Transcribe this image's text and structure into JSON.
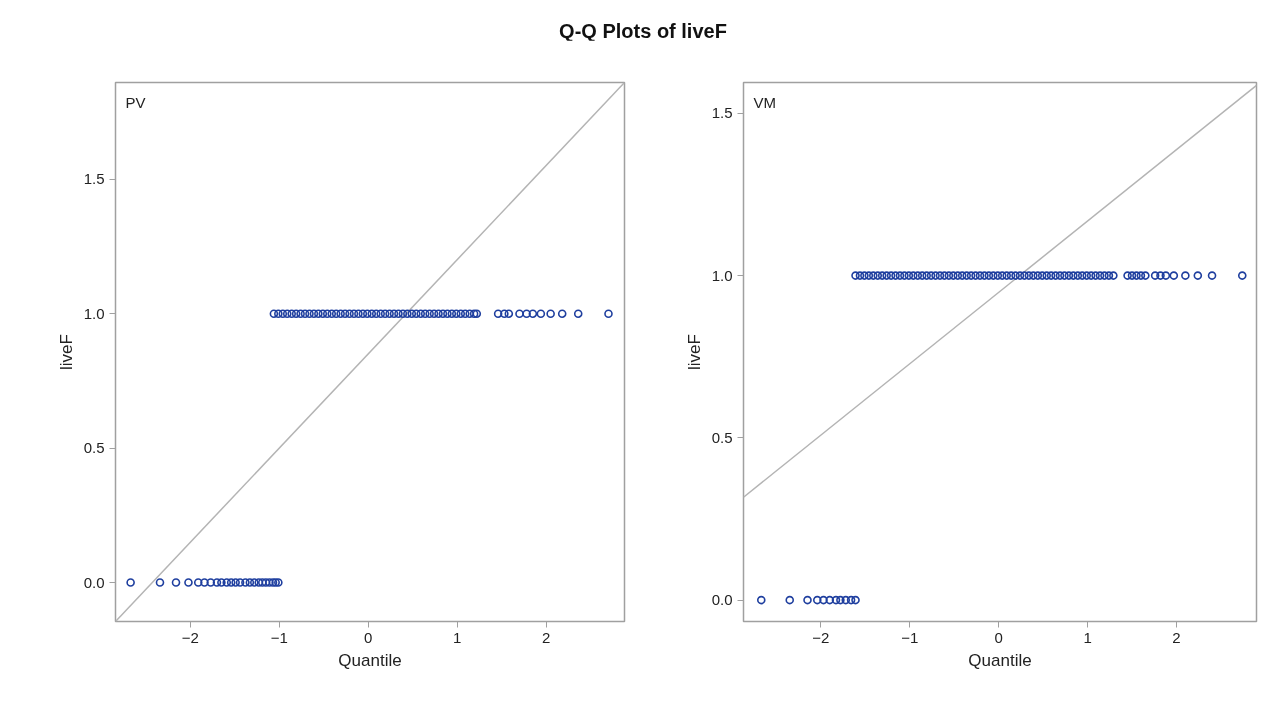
{
  "chart_data": [
    {
      "type": "scatter",
      "title": "Q-Q Plots of liveF",
      "xlabel": "Quantile",
      "ylabel": "liveF",
      "annotations": [
        "PV"
      ],
      "marker": "circle",
      "grid": false,
      "xlim": [
        -2.84,
        2.88
      ],
      "ylim": [
        -0.145,
        1.86
      ],
      "xticks": [
        -2,
        -1,
        0,
        1,
        2
      ],
      "yticks": [
        {
          "value": 0,
          "label": "0.0"
        },
        {
          "value": 0.5,
          "label": "0.5"
        },
        {
          "value": 1,
          "label": "1.0"
        },
        {
          "value": 1.5,
          "label": "1.5"
        }
      ],
      "series": [
        {
          "type": "line",
          "marker": "none",
          "color": "#b4b4b4",
          "x": [
            -2.84,
            2.88
          ],
          "values": [
            -0.145,
            1.86
          ]
        },
        {
          "color": "#1f3f9f",
          "x": [
            -2.67,
            -2.34,
            -2.16,
            -2.02,
            -1.91,
            -1.84,
            -1.77,
            -1.7,
            -1.65,
            -1.59,
            -1.54,
            -1.49,
            -1.44,
            -1.38,
            -1.33,
            -1.28,
            -1.23,
            -1.19,
            -1.15,
            -1.11,
            -1.07,
            -1.04,
            -1.01
          ],
          "values": [
            0,
            0,
            0,
            0,
            0,
            0,
            0,
            0,
            0,
            0,
            0,
            0,
            0,
            0,
            0,
            0,
            0,
            0,
            0,
            0,
            0,
            0,
            0
          ]
        },
        {
          "color": "#1f3f9f",
          "x": [
            -1.06,
            -1.01,
            -0.96,
            -0.91,
            -0.86,
            -0.81,
            -0.76,
            -0.71,
            -0.66,
            -0.61,
            -0.56,
            -0.51,
            -0.46,
            -0.41,
            -0.36,
            -0.31,
            -0.26,
            -0.21,
            -0.16,
            -0.11,
            -0.06,
            -0.01,
            0.04,
            0.09,
            0.14,
            0.19,
            0.24,
            0.29,
            0.34,
            0.39,
            0.44,
            0.49,
            0.54,
            0.59,
            0.64,
            0.69,
            0.74,
            0.79,
            0.84,
            0.89,
            0.94,
            0.99,
            1.04,
            1.09,
            1.14,
            1.19,
            1.22,
            1.46,
            1.53,
            1.58,
            1.7,
            1.78,
            1.85,
            1.94,
            2.05,
            2.18,
            2.36,
            2.7
          ],
          "values": [
            1,
            1,
            1,
            1,
            1,
            1,
            1,
            1,
            1,
            1,
            1,
            1,
            1,
            1,
            1,
            1,
            1,
            1,
            1,
            1,
            1,
            1,
            1,
            1,
            1,
            1,
            1,
            1,
            1,
            1,
            1,
            1,
            1,
            1,
            1,
            1,
            1,
            1,
            1,
            1,
            1,
            1,
            1,
            1,
            1,
            1,
            1,
            1,
            1,
            1,
            1,
            1,
            1,
            1,
            1,
            1,
            1,
            1
          ]
        }
      ]
    },
    {
      "type": "scatter",
      "xlabel": "Quantile",
      "ylabel": "liveF",
      "annotations": [
        "VM"
      ],
      "marker": "circle",
      "grid": false,
      "xlim": [
        -2.87,
        2.9
      ],
      "ylim": [
        -0.066,
        1.595
      ],
      "xticks": [
        -2,
        -1,
        0,
        1,
        2
      ],
      "yticks": [
        {
          "value": 0,
          "label": "0.0"
        },
        {
          "value": 0.5,
          "label": "0.5"
        },
        {
          "value": 1,
          "label": "1.0"
        },
        {
          "value": 1.5,
          "label": "1.5"
        }
      ],
      "series": [
        {
          "type": "line",
          "marker": "none",
          "color": "#b4b4b4",
          "x": [
            -2.87,
            2.9
          ],
          "values": [
            0.317,
            1.586
          ]
        },
        {
          "color": "#1f3f9f",
          "x": [
            -2.67,
            -2.35,
            -2.15,
            -2.04,
            -1.97,
            -1.9,
            -1.83,
            -1.78,
            -1.72,
            -1.66,
            -1.61
          ],
          "values": [
            0,
            0,
            0,
            0,
            0,
            0,
            0,
            0,
            0,
            0,
            0
          ]
        },
        {
          "color": "#1f3f9f",
          "x": [
            -1.61,
            -1.56,
            -1.51,
            -1.46,
            -1.41,
            -1.36,
            -1.31,
            -1.26,
            -1.21,
            -1.16,
            -1.11,
            -1.06,
            -1.01,
            -0.96,
            -0.91,
            -0.86,
            -0.81,
            -0.76,
            -0.71,
            -0.66,
            -0.61,
            -0.56,
            -0.51,
            -0.46,
            -0.41,
            -0.36,
            -0.31,
            -0.26,
            -0.21,
            -0.16,
            -0.11,
            -0.06,
            -0.01,
            0.04,
            0.09,
            0.14,
            0.19,
            0.24,
            0.29,
            0.34,
            0.39,
            0.44,
            0.49,
            0.54,
            0.59,
            0.64,
            0.69,
            0.74,
            0.79,
            0.84,
            0.89,
            0.94,
            0.99,
            1.04,
            1.09,
            1.14,
            1.19,
            1.24,
            1.29,
            1.45,
            1.5,
            1.55,
            1.6,
            1.65,
            1.76,
            1.82,
            1.88,
            1.97,
            2.1,
            2.24,
            2.4,
            2.74
          ],
          "values": [
            1,
            1,
            1,
            1,
            1,
            1,
            1,
            1,
            1,
            1,
            1,
            1,
            1,
            1,
            1,
            1,
            1,
            1,
            1,
            1,
            1,
            1,
            1,
            1,
            1,
            1,
            1,
            1,
            1,
            1,
            1,
            1,
            1,
            1,
            1,
            1,
            1,
            1,
            1,
            1,
            1,
            1,
            1,
            1,
            1,
            1,
            1,
            1,
            1,
            1,
            1,
            1,
            1,
            1,
            1,
            1,
            1,
            1,
            1,
            1,
            1,
            1,
            1,
            1,
            1,
            1,
            1,
            1,
            1,
            1,
            1,
            1
          ]
        }
      ]
    }
  ]
}
